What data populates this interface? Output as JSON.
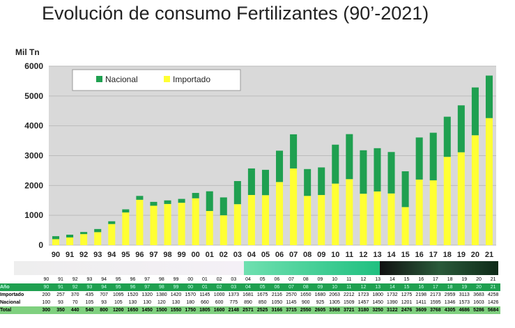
{
  "title": "Evolución de consumo Fertilizantes (90’-2021)",
  "chart_data": {
    "type": "bar",
    "stacked": true,
    "title": "Evolución de consumo Fertilizantes (90’-2021)",
    "ylabel": "Mil Tn",
    "ylim": [
      0,
      6000
    ],
    "yticks": [
      0,
      1000,
      2000,
      3000,
      4000,
      5000,
      6000
    ],
    "legend_position": "top-left",
    "categories": [
      "90",
      "91",
      "92",
      "93",
      "94",
      "95",
      "96",
      "97",
      "98",
      "99",
      "00",
      "01",
      "02",
      "03",
      "04",
      "05",
      "06",
      "07",
      "08",
      "09",
      "10",
      "11",
      "12",
      "13",
      "14",
      "15",
      "16",
      "17",
      "18",
      "19",
      "20",
      "21"
    ],
    "series": [
      {
        "name": "Importado",
        "color": "#ffff33",
        "values": [
          200,
          257,
          370,
          435,
          707,
          1095,
          1520,
          1320,
          1380,
          1420,
          1570,
          1145,
          1000,
          1373,
          1681,
          1675,
          2116,
          2570,
          1650,
          1680,
          2063,
          2212,
          1723,
          1800,
          1732,
          1275,
          2198,
          2173,
          2959,
          3113,
          3683,
          4258
        ]
      },
      {
        "name": "Nacional",
        "color": "#1fa050",
        "values": [
          100,
          93,
          70,
          105,
          93,
          105,
          130,
          130,
          120,
          130,
          180,
          660,
          600,
          775,
          890,
          850,
          1050,
          1145,
          900,
          925,
          1305,
          1509,
          1457,
          1450,
          1390,
          1201,
          1411,
          1595,
          1346,
          1573,
          1603,
          1426
        ]
      }
    ],
    "legend": [
      "Nacional",
      "Importado"
    ]
  },
  "table": {
    "row_labels": [
      "Año",
      "Importado",
      "Nacional",
      "Total"
    ],
    "totals": [
      300,
      350,
      440,
      540,
      800,
      1200,
      1650,
      1450,
      1500,
      1550,
      1750,
      1805,
      1600,
      2148,
      2571,
      2525,
      3166,
      3715,
      2550,
      2605,
      3368,
      3721,
      3180,
      3250,
      3122,
      2476,
      3609,
      3768,
      4305,
      4686,
      5286,
      5684
    ]
  }
}
